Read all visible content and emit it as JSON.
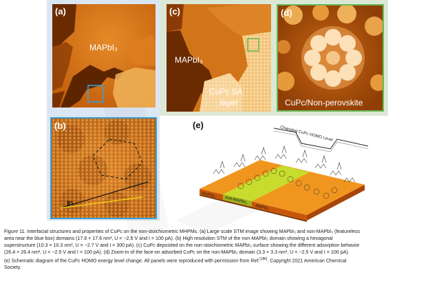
{
  "panels": {
    "a": {
      "label": "(a)",
      "text": "MAPbI₃"
    },
    "b": {
      "label": "(b)",
      "angle": "9°"
    },
    "c": {
      "label": "(c)",
      "text1": "MAPbI₃",
      "text2": "CuPc SA",
      "text3": "layer"
    },
    "d": {
      "label": "(d)",
      "text": "CuPc/Non-perovskite"
    },
    "e": {
      "label": "(e)",
      "energy": "Changing CuPc HOMO Level",
      "layer_left": "MAPbI₃",
      "layer_mid": "non-MAPbI₃",
      "layer_right": "MAPbI₃"
    }
  },
  "caption": {
    "l1": "Figure 11. Interfacial structures and properties of CuPc on the non-stoichiometric MHPMs. (a) Large scale STM image showing MAPbI₃ and non-MAPbI₃ (featureless",
    "l2": "area near the blue box) domains (17.6 × 17.6 nm², U = −2.5 V and I = 100 pA). (b) High resolution STM of the non-MAPbI₃ domain showing a hexagonal",
    "l3": "superstructure (10.3 × 10.3 nm², U = −2.7 V and I = 300 pA). (c) CuPc deposited on the non-stoichiometric MAPbI₃ surface showing the different adsorption behavior",
    "l4": "(26.4 × 26.4 nm², U = −2.5 V and I = 100 pA). (d) Zoom-in of the face-on adsorbed CuPc on the non-MAPbI₃ domain (3.3 × 3.3 nm², U = −2.5 V and I = 100 pA).",
    "l5a": "(e) Schematic diagram of the CuPc HOMO energy level change. All panels were reproduced with permission from Ref.",
    "ref": "[18k]",
    "l5b": ". Copyright 2021 American Chemical",
    "l6": "Society."
  },
  "colors": {
    "stm_dark": "#6a2b00",
    "stm_mid": "#c9680f",
    "stm_bright": "#f5c46a",
    "blue_frame": "#3b9fd6",
    "green_frame": "#67b957",
    "yellow_layer": "#c8dc2e"
  }
}
